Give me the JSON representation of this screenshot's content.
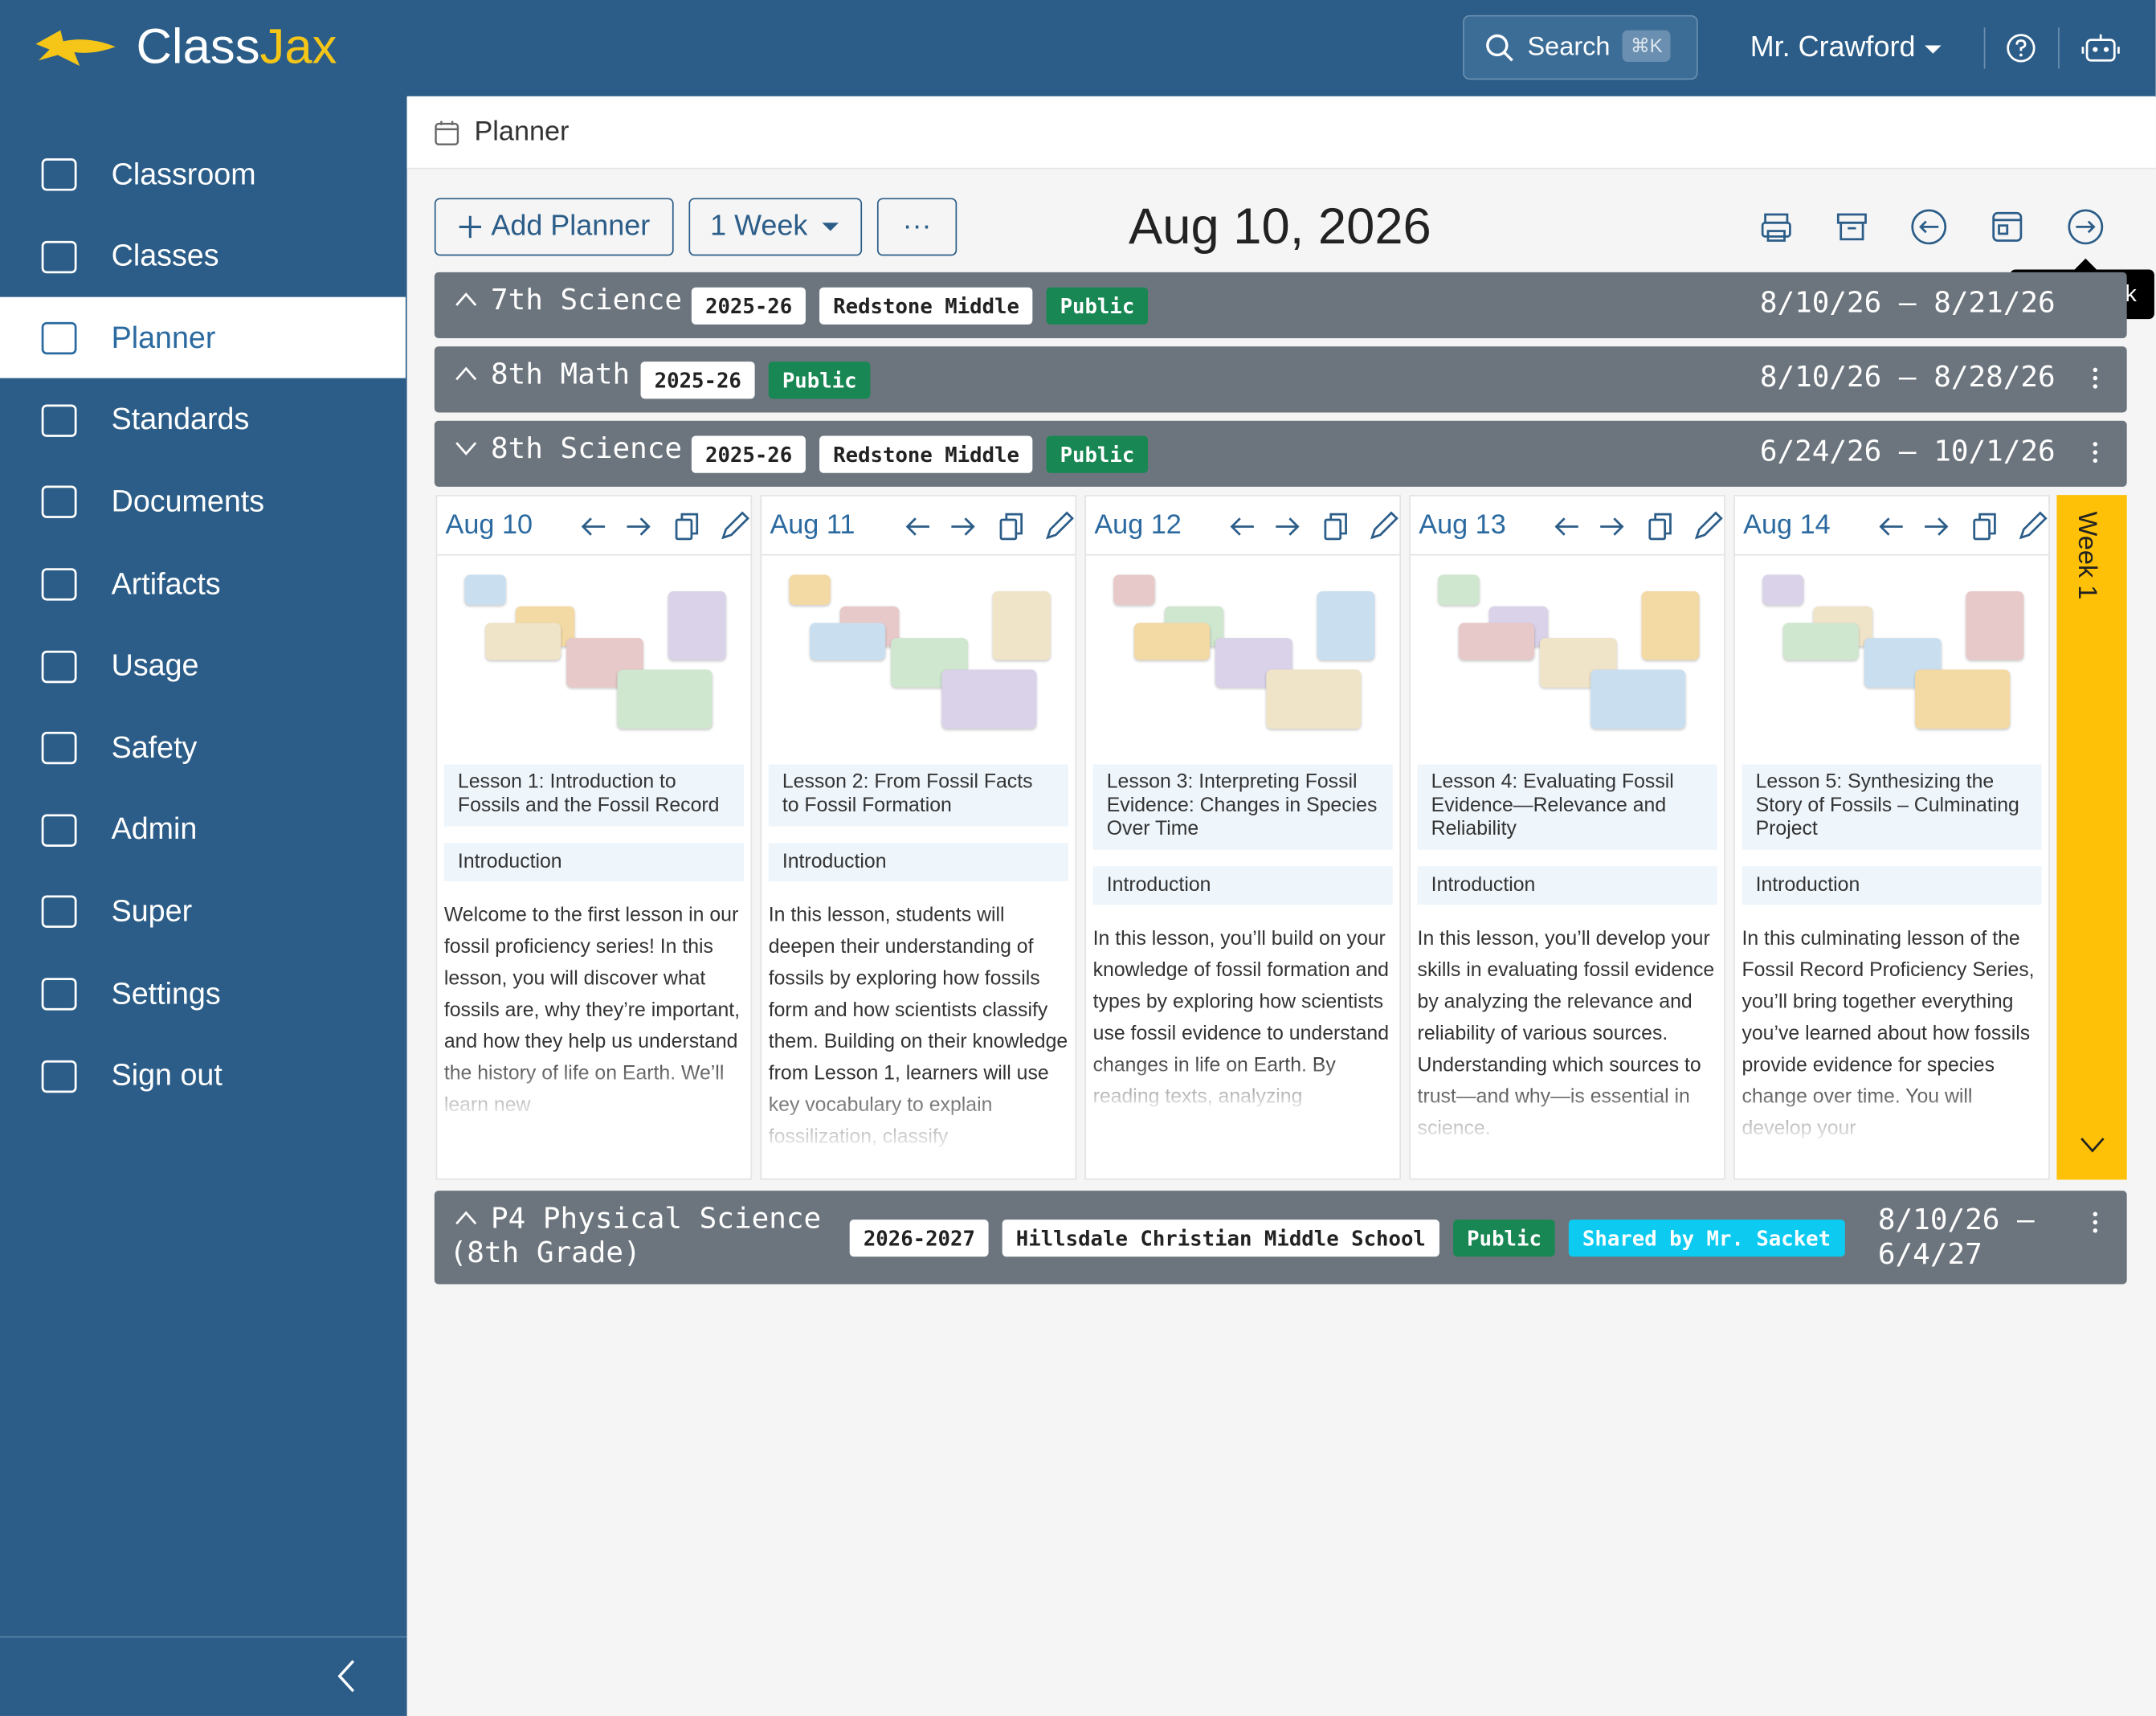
{
  "header": {
    "brand_a": "Class",
    "brand_b": "Jax",
    "search": "Search",
    "shortcut": "⌘K",
    "user": "Mr. Crawford"
  },
  "sidebar": {
    "items": [
      "Classroom",
      "Classes",
      "Planner",
      "Standards",
      "Documents",
      "Artifacts",
      "Usage",
      "Safety",
      "Admin",
      "Super",
      "Settings",
      "Sign out"
    ]
  },
  "breadcrumb": "Planner",
  "toolbar": {
    "add": "Add Planner",
    "range": "1 Week",
    "more": "···",
    "date": "Aug 10, 2026",
    "tooltip": "Next week"
  },
  "planners": [
    {
      "title": "7th Science",
      "badges": [
        {
          "text": "2025-26",
          "kind": "light"
        },
        {
          "text": "Redstone Middle",
          "kind": "light"
        },
        {
          "text": "Public",
          "kind": "green"
        }
      ],
      "dates": "8/10/26 – 8/21/26",
      "expanded": false
    },
    {
      "title": "8th Math",
      "badges": [
        {
          "text": "2025-26",
          "kind": "light"
        },
        {
          "text": "Public",
          "kind": "green"
        }
      ],
      "dates": "8/10/26 – 8/28/26",
      "expanded": false
    },
    {
      "title": "8th Science",
      "badges": [
        {
          "text": "2025-26",
          "kind": "light"
        },
        {
          "text": "Redstone Middle",
          "kind": "light"
        },
        {
          "text": "Public",
          "kind": "green"
        }
      ],
      "dates": "6/24/26 – 10/1/26",
      "expanded": true
    },
    {
      "title": "P4 Physical Science (8th Grade)",
      "badges": [
        {
          "text": "2026-2027",
          "kind": "light"
        },
        {
          "text": "Hillsdale Christian Middle School",
          "kind": "light"
        },
        {
          "text": "Public",
          "kind": "green"
        },
        {
          "text": "Shared by Mr. Sacket",
          "kind": "cyan"
        }
      ],
      "dates": "8/10/26 – 6/4/27",
      "expanded": false
    }
  ],
  "days": [
    {
      "date": "Aug 10",
      "title": "Lesson 1: Introduction to Fossils and the Fossil Record",
      "section": "Introduction",
      "text": "Welcome to the first lesson in our fossil proficiency series! In this lesson, you will discover what fossils are, why they’re important, and how they help us understand the history of life on Earth. We’ll learn new"
    },
    {
      "date": "Aug 11",
      "title": "Lesson 2: From Fossil Facts to Fossil Formation",
      "section": "Introduction",
      "text": "In this lesson, students will deepen their understanding of fossils by exploring how fossils form and how scientists classify them. Building on their knowledge from Lesson 1, learners will use key vocabulary to explain fossilization, classify"
    },
    {
      "date": "Aug 12",
      "title": "Lesson 3: Interpreting Fossil Evidence: Changes in Species Over Time",
      "section": "Introduction",
      "text": "In this lesson, you’ll build on your knowledge of fossil formation and types by exploring how scientists use fossil evidence to understand changes in life on Earth. By reading texts, analyzing"
    },
    {
      "date": "Aug 13",
      "title": "Lesson 4: Evaluating Fossil Evidence—Relevance and Reliability",
      "section": "Introduction",
      "text": "In this lesson, you’ll develop your skills in evaluating fossil evidence by analyzing the relevance and reliability of various sources. Understanding which sources to trust—and why—is essential in science."
    },
    {
      "date": "Aug 14",
      "title": "Lesson 5: Synthesizing the Story of Fossils – Culminating Project",
      "section": "Introduction",
      "text": "In this culminating lesson of the Fossil Record Proficiency Series, you’ll bring together everything you’ve learned about how fossils provide evidence for species change over time. You will develop your"
    }
  ],
  "week": "Week 1"
}
